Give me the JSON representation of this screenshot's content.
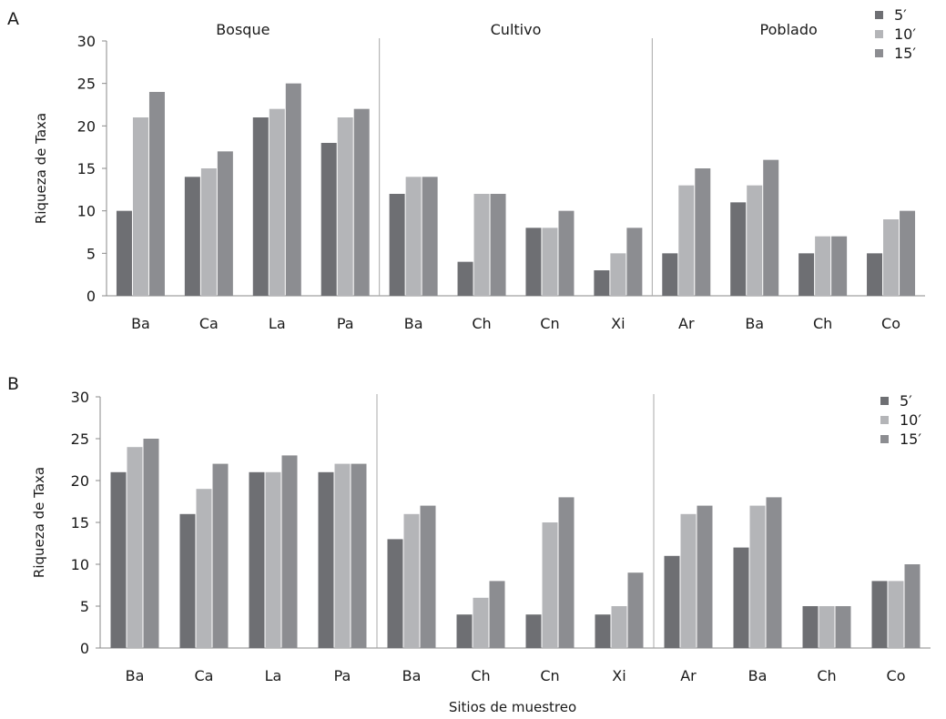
{
  "xlabel": "Sitios de muestreo",
  "legend": [
    {
      "label": "5′",
      "color": "#6e6f73"
    },
    {
      "label": "10′",
      "color": "#b4b5b8"
    },
    {
      "label": "15′",
      "color": "#8c8d91"
    }
  ],
  "chart_data": [
    {
      "type": "bar",
      "panel": "A",
      "ylabel": "Riqueza de Taxa",
      "ylim": [
        0,
        30
      ],
      "yticks": [
        0,
        5,
        10,
        15,
        20,
        25,
        30
      ],
      "legend_position": "top-right",
      "groups": [
        {
          "label": "Bosque",
          "categories": [
            "Ba",
            "Ca",
            "La",
            "Pa"
          ]
        },
        {
          "label": "Cultivo",
          "categories": [
            "Ba",
            "Ch",
            "Cn",
            "Xi"
          ]
        },
        {
          "label": "Poblado",
          "categories": [
            "Ar",
            "Ba",
            "Ch",
            "Co"
          ]
        }
      ],
      "categories": [
        "Ba",
        "Ca",
        "La",
        "Pa",
        "Ba",
        "Ch",
        "Cn",
        "Xi",
        "Ar",
        "Ba",
        "Ch",
        "Co"
      ],
      "series": [
        {
          "name": "5′",
          "values": [
            10,
            14,
            21,
            18,
            12,
            4,
            8,
            3,
            5,
            11,
            5,
            5
          ]
        },
        {
          "name": "10′",
          "values": [
            21,
            15,
            22,
            21,
            14,
            12,
            8,
            5,
            13,
            13,
            7,
            9
          ]
        },
        {
          "name": "15′",
          "values": [
            24,
            17,
            25,
            22,
            14,
            12,
            10,
            8,
            15,
            16,
            7,
            10
          ]
        }
      ]
    },
    {
      "type": "bar",
      "panel": "B",
      "ylabel": "Riqueza de Taxa",
      "ylim": [
        0,
        30
      ],
      "yticks": [
        0,
        5,
        10,
        15,
        20,
        25,
        30
      ],
      "legend_position": "top-right",
      "groups": [
        {
          "label": "",
          "categories": [
            "Ba",
            "Ca",
            "La",
            "Pa"
          ]
        },
        {
          "label": "",
          "categories": [
            "Ba",
            "Ch",
            "Cn",
            "Xi"
          ]
        },
        {
          "label": "",
          "categories": [
            "Ar",
            "Ba",
            "Ch",
            "Co"
          ]
        }
      ],
      "categories": [
        "Ba",
        "Ca",
        "La",
        "Pa",
        "Ba",
        "Ch",
        "Cn",
        "Xi",
        "Ar",
        "Ba",
        "Ch",
        "Co"
      ],
      "series": [
        {
          "name": "5′",
          "values": [
            21,
            16,
            21,
            21,
            13,
            4,
            4,
            4,
            11,
            12,
            5,
            8
          ]
        },
        {
          "name": "10′",
          "values": [
            24,
            19,
            21,
            22,
            16,
            6,
            15,
            5,
            16,
            17,
            5,
            8
          ]
        },
        {
          "name": "15′",
          "values": [
            25,
            22,
            23,
            22,
            17,
            8,
            18,
            9,
            17,
            18,
            5,
            10
          ]
        }
      ]
    }
  ]
}
